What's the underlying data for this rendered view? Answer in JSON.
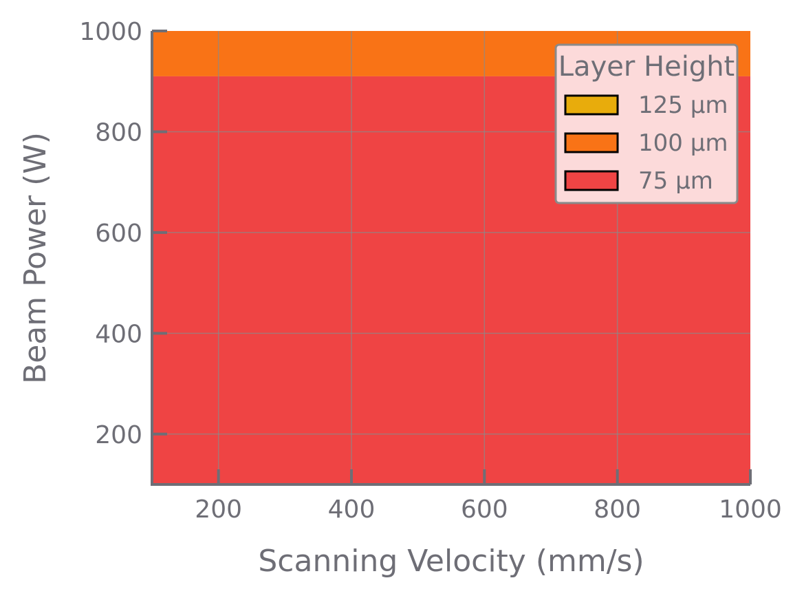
{
  "chart_data": {
    "type": "area",
    "title": "",
    "xlabel": "Scanning Velocity (mm/s)",
    "ylabel": "Beam Power (W)",
    "xlim": [
      100,
      1000
    ],
    "ylim": [
      100,
      1000
    ],
    "x_ticks": [
      200,
      400,
      600,
      800,
      1000
    ],
    "y_ticks": [
      200,
      400,
      600,
      800,
      1000
    ],
    "grid": true,
    "legend": {
      "title": "Layer Height",
      "placement": "top-right",
      "entries": [
        "125 µm",
        "100 µm",
        "75 µm"
      ]
    },
    "series": [
      {
        "name": "125 µm",
        "color": "#e8ac0c",
        "regions": []
      },
      {
        "name": "100 µm",
        "color": "#f97316",
        "regions": [
          {
            "x": [
              100,
              1000
            ],
            "y": [
              910,
              1000
            ]
          }
        ]
      },
      {
        "name": "75 µm",
        "color": "#ef4444",
        "regions": [
          {
            "x": [
              100,
              1000
            ],
            "y": [
              100,
              910
            ]
          }
        ]
      }
    ],
    "colors": {
      "axis": "#6e6e76",
      "grid": "#8a8a8a",
      "legend_bg": "#fcdada"
    }
  }
}
